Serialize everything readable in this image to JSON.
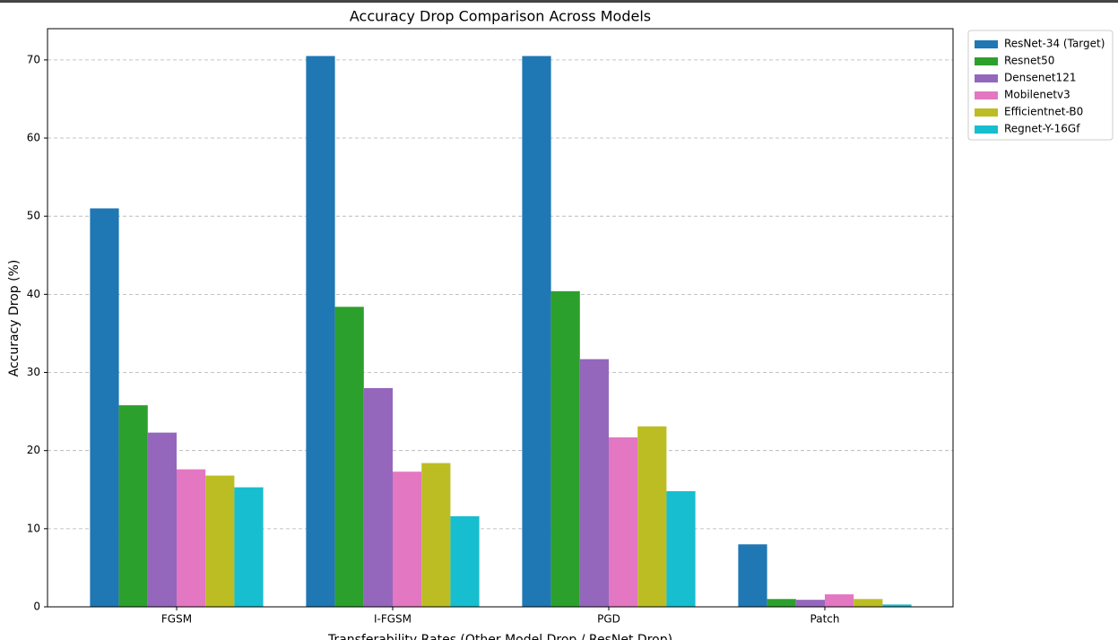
{
  "chart_data": {
    "type": "bar",
    "title": "Accuracy Drop Comparison Across Models",
    "y_label": "Accuracy Drop (%)",
    "x_label": "Transferability Rates (Other Model Drop / ResNet Drop)",
    "categories": [
      "FGSM",
      "I-FGSM",
      "PGD",
      "Patch"
    ],
    "series": [
      {
        "name": "ResNet-34 (Target)",
        "color": "#1f77b4",
        "values": [
          51.0,
          70.5,
          70.5,
          8.0
        ]
      },
      {
        "name": "Resnet50",
        "color": "#2ca02c",
        "values": [
          25.8,
          38.4,
          40.4,
          1.0
        ]
      },
      {
        "name": "Densenet121",
        "color": "#9467bd",
        "values": [
          22.3,
          28.0,
          31.7,
          0.9
        ]
      },
      {
        "name": "Mobilenetv3",
        "color": "#e377c2",
        "values": [
          17.6,
          17.3,
          21.7,
          1.6
        ]
      },
      {
        "name": "Efficientnet-B0",
        "color": "#bcbd22",
        "values": [
          16.8,
          18.4,
          23.1,
          1.0
        ]
      },
      {
        "name": "Regnet-Y-16Gf",
        "color": "#17becf",
        "values": [
          15.3,
          11.6,
          14.8,
          0.3
        ]
      }
    ],
    "ylim": [
      0,
      74
    ],
    "yticks": [
      0,
      10,
      20,
      30,
      40,
      50,
      60,
      70
    ],
    "grid": true,
    "legend": "outside-right"
  }
}
